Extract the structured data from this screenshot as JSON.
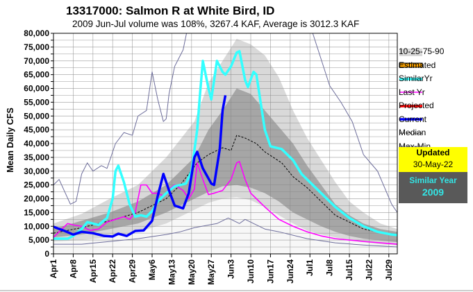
{
  "chart_data": {
    "type": "line",
    "title": "13317000: Salmon R at White Bird, ID",
    "subtitle": "2009 Jun-Jul volume was 108%, 3267.4 KAF, Average is 3012.3 KAF",
    "ylabel": "Mean Daily CFS",
    "xlabel": "",
    "ylim": [
      0,
      80000
    ],
    "xrange_days_from_apr1": [
      0,
      122
    ],
    "yticks": [
      "0",
      "5,000",
      "10,000",
      "15,000",
      "20,000",
      "25,000",
      "30,000",
      "35,000",
      "40,000",
      "45,000",
      "50,000",
      "55,000",
      "60,000",
      "65,000",
      "70,000",
      "75,000",
      "80,000"
    ],
    "xticks": [
      "Apr1",
      "Apr8",
      "Apr15",
      "Apr22",
      "Apr29",
      "May6",
      "May13",
      "May20",
      "May27",
      "Jun3",
      "Jun10",
      "Jun17",
      "Jun24",
      "Jul1",
      "Jul8",
      "Jul15",
      "Jul22",
      "Jul29"
    ],
    "bands": {
      "days": [
        0,
        10,
        20,
        30,
        40,
        50,
        55,
        60,
        65,
        70,
        75,
        80,
        85,
        90,
        95,
        100,
        105,
        110,
        116,
        122
      ],
      "p10": [
        4500,
        5000,
        6000,
        8000,
        11000,
        16000,
        18500,
        20000,
        20500,
        19500,
        17000,
        14000,
        11000,
        8500,
        7000,
        6000,
        5000,
        4200,
        3500,
        3000
      ],
      "p25": [
        6000,
        7000,
        9000,
        11000,
        15000,
        20000,
        22500,
        24500,
        25000,
        24000,
        22000,
        19000,
        15000,
        12500,
        10000,
        8000,
        6500,
        5500,
        4800,
        4200
      ],
      "p75": [
        9000,
        12000,
        15000,
        19000,
        25000,
        35000,
        45000,
        52000,
        60000,
        58000,
        52000,
        46000,
        40000,
        32000,
        25000,
        18000,
        14000,
        11000,
        9000,
        8000
      ],
      "p90": [
        11000,
        14500,
        20000,
        25000,
        35000,
        48000,
        62000,
        70000,
        78000,
        76000,
        72000,
        64000,
        52000,
        42000,
        34000,
        26000,
        19000,
        15000,
        11000,
        9000
      ]
    },
    "series": [
      {
        "name": "Max-Min",
        "color": "#6c6c9a",
        "width": 1,
        "days": [
          0,
          2,
          6,
          8,
          10,
          12,
          14,
          17,
          19,
          22,
          25,
          28,
          30,
          33,
          35,
          37,
          39,
          40,
          41,
          43,
          46,
          48,
          92,
          98,
          102,
          106,
          110,
          115,
          120,
          122
        ],
        "values": [
          25000,
          27000,
          18000,
          19000,
          29000,
          33000,
          30000,
          32000,
          31000,
          40000,
          44000,
          43000,
          50000,
          52000,
          66000,
          56000,
          48000,
          49000,
          58000,
          68000,
          74000,
          95000,
          80000,
          61000,
          55000,
          48000,
          36000,
          30000,
          18000,
          15000
        ]
      },
      {
        "name": "Min",
        "color": "#6c6c9a",
        "width": 1,
        "days": [
          0,
          10,
          20,
          30,
          40,
          45,
          50,
          58,
          62,
          66,
          68,
          75,
          80,
          90,
          100,
          110,
          122
        ],
        "values": [
          3500,
          3500,
          4500,
          5500,
          7000,
          8000,
          9500,
          11000,
          13000,
          11000,
          12500,
          9000,
          8000,
          5500,
          4000,
          3200,
          2500
        ]
      },
      {
        "name": "Median",
        "color": "#000000",
        "width": 1,
        "dash": "3,2",
        "days": [
          0,
          10,
          20,
          30,
          40,
          45,
          51,
          55,
          60,
          63,
          65,
          68,
          72,
          75,
          81,
          85,
          90,
          95,
          100,
          110,
          122
        ],
        "values": [
          7500,
          9500,
          12000,
          15000,
          20000,
          25000,
          33000,
          36000,
          38500,
          37500,
          43000,
          42000,
          40000,
          37000,
          33000,
          28000,
          24000,
          19000,
          14000,
          9000,
          6500
        ]
      },
      {
        "name": "Last Yr",
        "color": "#ff00ff",
        "width": 1.6,
        "days": [
          0,
          3,
          5,
          7,
          10,
          13,
          16,
          19,
          22,
          25,
          27,
          29,
          31,
          33,
          35,
          37,
          39,
          41,
          43,
          46,
          48,
          50,
          51,
          53,
          55,
          57,
          60,
          63,
          65,
          66,
          68,
          70,
          72,
          75,
          80,
          85,
          90,
          95,
          100,
          110,
          122
        ],
        "values": [
          6000,
          9000,
          11000,
          10500,
          10000,
          8500,
          9000,
          11500,
          12500,
          13500,
          12500,
          15000,
          25000,
          25000,
          22000,
          22000,
          21000,
          23500,
          25000,
          23000,
          20000,
          23500,
          33000,
          27000,
          21500,
          22000,
          23000,
          27000,
          33000,
          33500,
          27000,
          22000,
          20000,
          17000,
          12500,
          10000,
          8000,
          6500,
          5500,
          4500,
          3500
        ]
      },
      {
        "name": "SimilarYr",
        "color": "#33ffff",
        "width": 3.5,
        "days": [
          0,
          5,
          7,
          10,
          12,
          14,
          16,
          19,
          21,
          22,
          23,
          25,
          27,
          29,
          31,
          33,
          35,
          37,
          40,
          43,
          47,
          49,
          51,
          52,
          53,
          55,
          56,
          58,
          60,
          61,
          63,
          65,
          66,
          68,
          69,
          71,
          72,
          75,
          77,
          79,
          81,
          85,
          88,
          93,
          100,
          105,
          110,
          115,
          120,
          122
        ],
        "values": [
          5500,
          5500,
          6500,
          9000,
          11500,
          11000,
          10500,
          13000,
          20000,
          30000,
          32000,
          26000,
          18000,
          13500,
          14000,
          13500,
          15500,
          19000,
          22000,
          24500,
          25500,
          30000,
          45000,
          58000,
          70000,
          60000,
          56000,
          70000,
          66000,
          65000,
          68000,
          73000,
          73500,
          63000,
          60500,
          66000,
          65000,
          45000,
          39000,
          38500,
          38000,
          34000,
          29000,
          24000,
          17000,
          13000,
          10000,
          8000,
          7000,
          6800
        ]
      },
      {
        "name": "Current",
        "color": "#0000ff",
        "width": 3.5,
        "days": [
          0,
          4,
          7,
          10,
          14,
          18,
          21,
          23,
          26,
          29,
          32,
          35,
          37,
          39,
          41,
          43,
          46,
          48,
          50,
          51,
          53,
          56,
          57,
          59,
          60,
          61
        ],
        "values": [
          9800,
          8300,
          7000,
          8000,
          7500,
          6500,
          6300,
          7300,
          6500,
          8300,
          8500,
          12000,
          21000,
          29000,
          23000,
          17500,
          16500,
          22000,
          35000,
          37000,
          31000,
          25500,
          25000,
          38000,
          52000,
          57500
        ]
      }
    ],
    "legend": {
      "placement": "right",
      "items": [
        "10-25-75-90",
        "Estimated",
        "SimilarYr",
        "Last Yr",
        "Projected",
        "Current",
        "Median",
        "Max-Min"
      ]
    },
    "updated_label": "Updated",
    "updated_date": "30-May-22",
    "similar_year_label": "Similar Year",
    "similar_year": "2009"
  }
}
